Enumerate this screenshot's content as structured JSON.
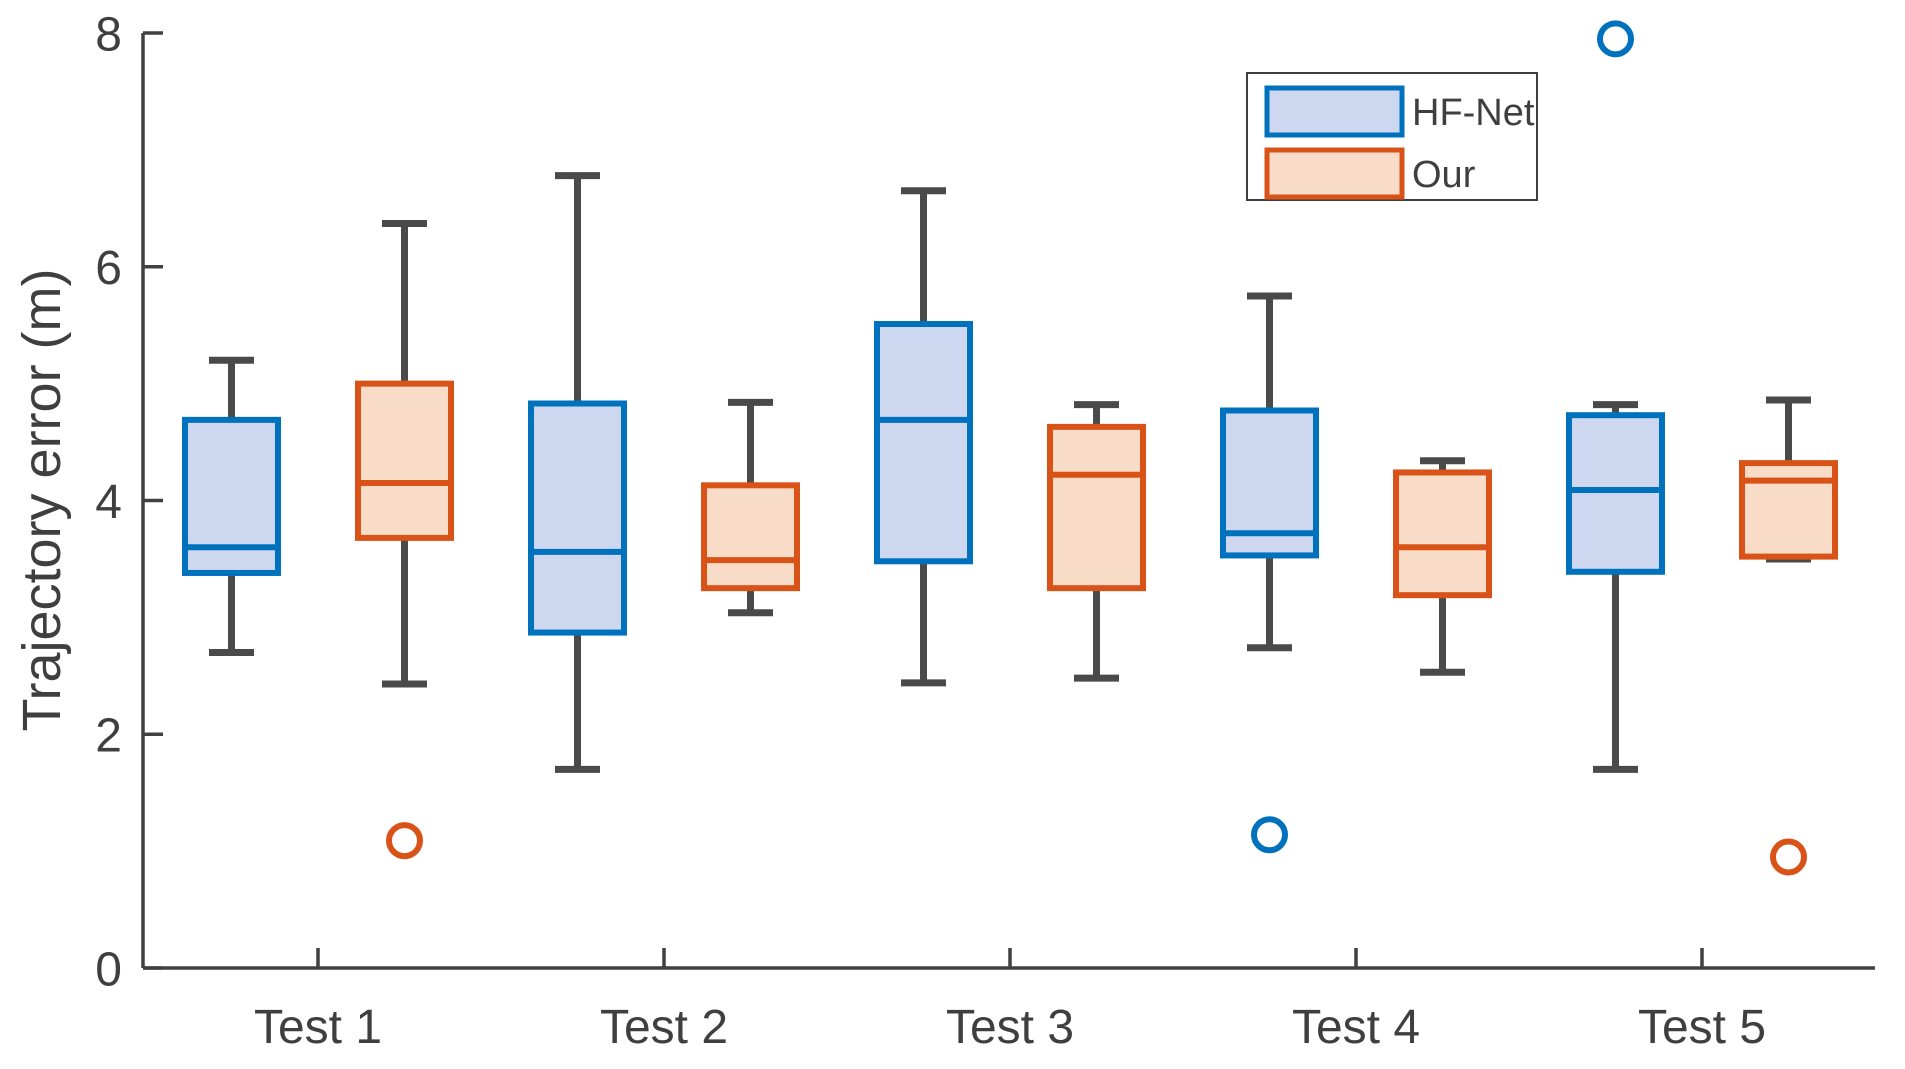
{
  "figure": {
    "background": "#ffffff"
  },
  "style": {
    "axis_color": "#404040",
    "text_color": "#3F3F3F",
    "whisker_color": "#4A4A4A",
    "legend_border_color": "#3F3F3F"
  },
  "legend": {
    "position": "top-right",
    "labels": [
      "HF-Net",
      "Our"
    ]
  },
  "chart_data": {
    "type": "boxplot",
    "title": "",
    "xlabel": "",
    "ylabel": "Trajectory error (m)",
    "ylim": [
      0,
      8
    ],
    "yticks": [
      0,
      2,
      4,
      6,
      8
    ],
    "categories": [
      "Test 1",
      "Test 2",
      "Test 3",
      "Test 4",
      "Test 5"
    ],
    "grid": false,
    "legend_position": "top-right",
    "series": [
      {
        "name": "HF-Net",
        "edge_color": "#0072BD",
        "fill_color": "#CDD8F0",
        "boxes": [
          {
            "category": "Test 1",
            "whisker_low": 2.7,
            "q1": 3.38,
            "median": 3.6,
            "q3": 4.69,
            "whisker_high": 5.2,
            "outliers": []
          },
          {
            "category": "Test 2",
            "whisker_low": 1.7,
            "q1": 2.87,
            "median": 3.56,
            "q3": 4.83,
            "whisker_high": 6.78,
            "outliers": []
          },
          {
            "category": "Test 3",
            "whisker_low": 2.44,
            "q1": 3.48,
            "median": 4.69,
            "q3": 5.51,
            "whisker_high": 6.65,
            "outliers": []
          },
          {
            "category": "Test 4",
            "whisker_low": 2.74,
            "q1": 3.53,
            "median": 3.72,
            "q3": 4.77,
            "whisker_high": 5.75,
            "outliers": [
              1.14
            ]
          },
          {
            "category": "Test 5",
            "whisker_low": 1.7,
            "q1": 3.39,
            "median": 4.09,
            "q3": 4.73,
            "whisker_high": 4.82,
            "outliers": [
              7.95
            ]
          }
        ]
      },
      {
        "name": "Our",
        "edge_color": "#D95319",
        "fill_color": "#F8DCC7",
        "boxes": [
          {
            "category": "Test 1",
            "whisker_low": 2.43,
            "q1": 3.68,
            "median": 4.15,
            "q3": 5.0,
            "whisker_high": 6.37,
            "outliers": [
              1.09
            ]
          },
          {
            "category": "Test 2",
            "whisker_low": 3.04,
            "q1": 3.25,
            "median": 3.49,
            "q3": 4.13,
            "whisker_high": 4.84,
            "outliers": []
          },
          {
            "category": "Test 3",
            "whisker_low": 2.48,
            "q1": 3.25,
            "median": 4.22,
            "q3": 4.63,
            "whisker_high": 4.82,
            "outliers": []
          },
          {
            "category": "Test 4",
            "whisker_low": 2.53,
            "q1": 3.19,
            "median": 3.6,
            "q3": 4.24,
            "whisker_high": 4.34,
            "outliers": []
          },
          {
            "category": "Test 5",
            "whisker_low": 3.5,
            "q1": 3.52,
            "median": 4.17,
            "q3": 4.32,
            "whisker_high": 4.86,
            "outliers": [
              0.95
            ]
          }
        ]
      }
    ]
  }
}
